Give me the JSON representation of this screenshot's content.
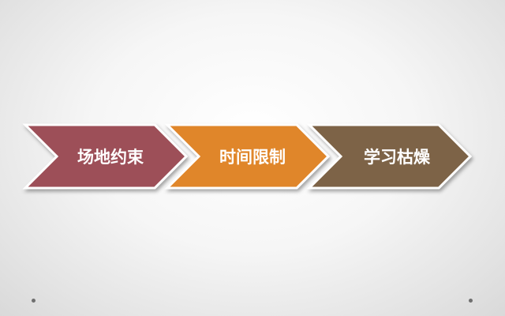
{
  "diagram": {
    "steps": [
      {
        "label": "场地约束",
        "color": "#9d5058"
      },
      {
        "label": "时间限制",
        "color": "#e0862a"
      },
      {
        "label": "学习枯燥",
        "color": "#7d6446"
      }
    ],
    "text_color": "#ffffff",
    "border_color": "#ffffff"
  }
}
